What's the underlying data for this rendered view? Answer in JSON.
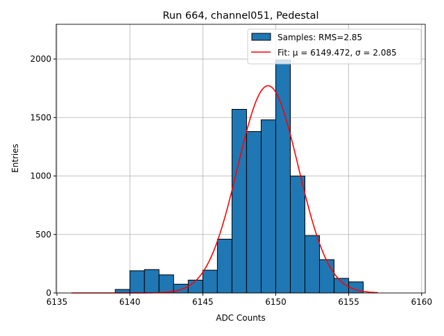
{
  "chart_data": {
    "type": "bar",
    "title": "Run 664, channel051, Pedestal",
    "xlabel": "ADC Counts",
    "ylabel": "Entries",
    "xlim": [
      6134.95,
      6160.25
    ],
    "ylim": [
      0,
      2297
    ],
    "xticks": [
      6135,
      6140,
      6145,
      6150,
      6155,
      6160
    ],
    "yticks": [
      0,
      500,
      1000,
      1500,
      2000
    ],
    "grid": true,
    "legend_position": "top-right",
    "bin_width": 1,
    "bins": [
      {
        "x": 6139,
        "value": 30
      },
      {
        "x": 6140,
        "value": 190
      },
      {
        "x": 6141,
        "value": 200
      },
      {
        "x": 6142,
        "value": 155
      },
      {
        "x": 6143,
        "value": 75
      },
      {
        "x": 6144,
        "value": 110
      },
      {
        "x": 6145,
        "value": 195
      },
      {
        "x": 6146,
        "value": 460
      },
      {
        "x": 6147,
        "value": 1570
      },
      {
        "x": 6148,
        "value": 1380
      },
      {
        "x": 6149,
        "value": 1480
      },
      {
        "x": 6150,
        "value": 1990
      },
      {
        "x": 6151,
        "value": 1000
      },
      {
        "x": 6152,
        "value": 490
      },
      {
        "x": 6153,
        "value": 285
      },
      {
        "x": 6154,
        "value": 125
      },
      {
        "x": 6155,
        "value": 95
      }
    ],
    "fit": {
      "mu": 6149.472,
      "sigma": 2.085,
      "amplitude": 1772,
      "range": [
        6136,
        6157
      ]
    },
    "legend": [
      {
        "label": "Samples: RMS=2.85",
        "color": "#1f77b4"
      },
      {
        "label": "Fit: μ = 6149.472, σ = 2.085",
        "color": "#ff0000"
      }
    ]
  }
}
